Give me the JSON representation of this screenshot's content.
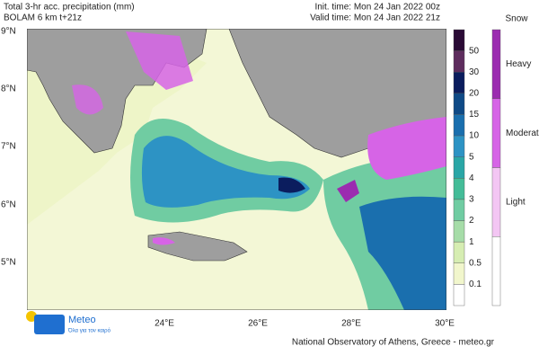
{
  "header": {
    "title": "Total 3-hr acc. precipitation (mm)",
    "model": "BOLAM 6 km t+21z",
    "init_time": "Init. time: Mon 24 Jan 2022 00z",
    "valid_time": "Valid time: Mon 24 Jan 2022 21z"
  },
  "map": {
    "lat_labels": [
      "9°N",
      "8°N",
      "7°N",
      "6°N",
      "5°N"
    ],
    "lon_labels": [
      "24°E",
      "26°E",
      "28°E",
      "30°E"
    ]
  },
  "colorbar": {
    "levels": [
      "50",
      "30",
      "20",
      "15",
      "10",
      "5",
      "4",
      "3",
      "2",
      "1",
      "0.5",
      "0.1"
    ],
    "colors": [
      "#2b0b36",
      "#5e2d5e",
      "#0b1d5e",
      "#0f4a86",
      "#1a6fae",
      "#2d93c4",
      "#2aa6a6",
      "#44bc98",
      "#70cca2",
      "#a6dca8",
      "#d6edb2",
      "#f1f6cc",
      "#ffffff"
    ]
  },
  "snow": {
    "title": "Snow",
    "labels": [
      "Heavy",
      "Moderate",
      "Light"
    ],
    "colors": [
      "#9b2cb0",
      "#d664e6",
      "#f3c6f3",
      "#ffffff"
    ]
  },
  "logo": {
    "name": "Meteo",
    "tagline": "Όλα για τον καιρό"
  },
  "footer": "National Observatory of Athens, Greece - meteo.gr"
}
